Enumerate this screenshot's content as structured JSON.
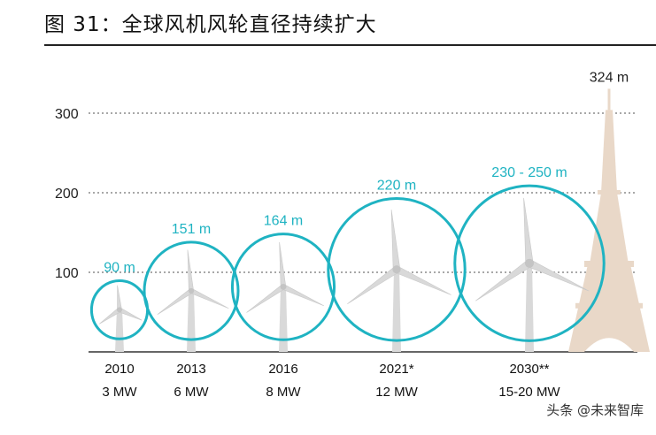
{
  "figure_title": "图 31：全球风机风轮直径持续扩大",
  "watermark": "头条 @未来智库",
  "colors": {
    "circle": "#1fb3c2",
    "turbine": "#d9d9d9",
    "grid": "#8c8c8c",
    "tower": "#e9d8c8"
  },
  "chart_data": {
    "type": "scatter",
    "title": "",
    "xlabel": "",
    "ylabel": "",
    "ylim": [
      0,
      330
    ],
    "yticks": [
      100,
      200,
      300
    ],
    "grid": true,
    "series": [
      {
        "values": [
          {
            "year": "2010",
            "power": "3 MW",
            "diameter": 90,
            "label": "90 m"
          },
          {
            "year": "2013",
            "power": "6 MW",
            "diameter": 151,
            "label": "151 m"
          },
          {
            "year": "2016",
            "power": "8 MW",
            "diameter": 164,
            "label": "164 m"
          },
          {
            "year": "2021*",
            "power": "12 MW",
            "diameter": 220,
            "label": "220 m"
          },
          {
            "year": "2030**",
            "power": "15-20 MW",
            "diameter": 240,
            "label": "230 - 250 m"
          }
        ]
      }
    ],
    "reference": {
      "label": "324 m",
      "height": 324
    }
  }
}
